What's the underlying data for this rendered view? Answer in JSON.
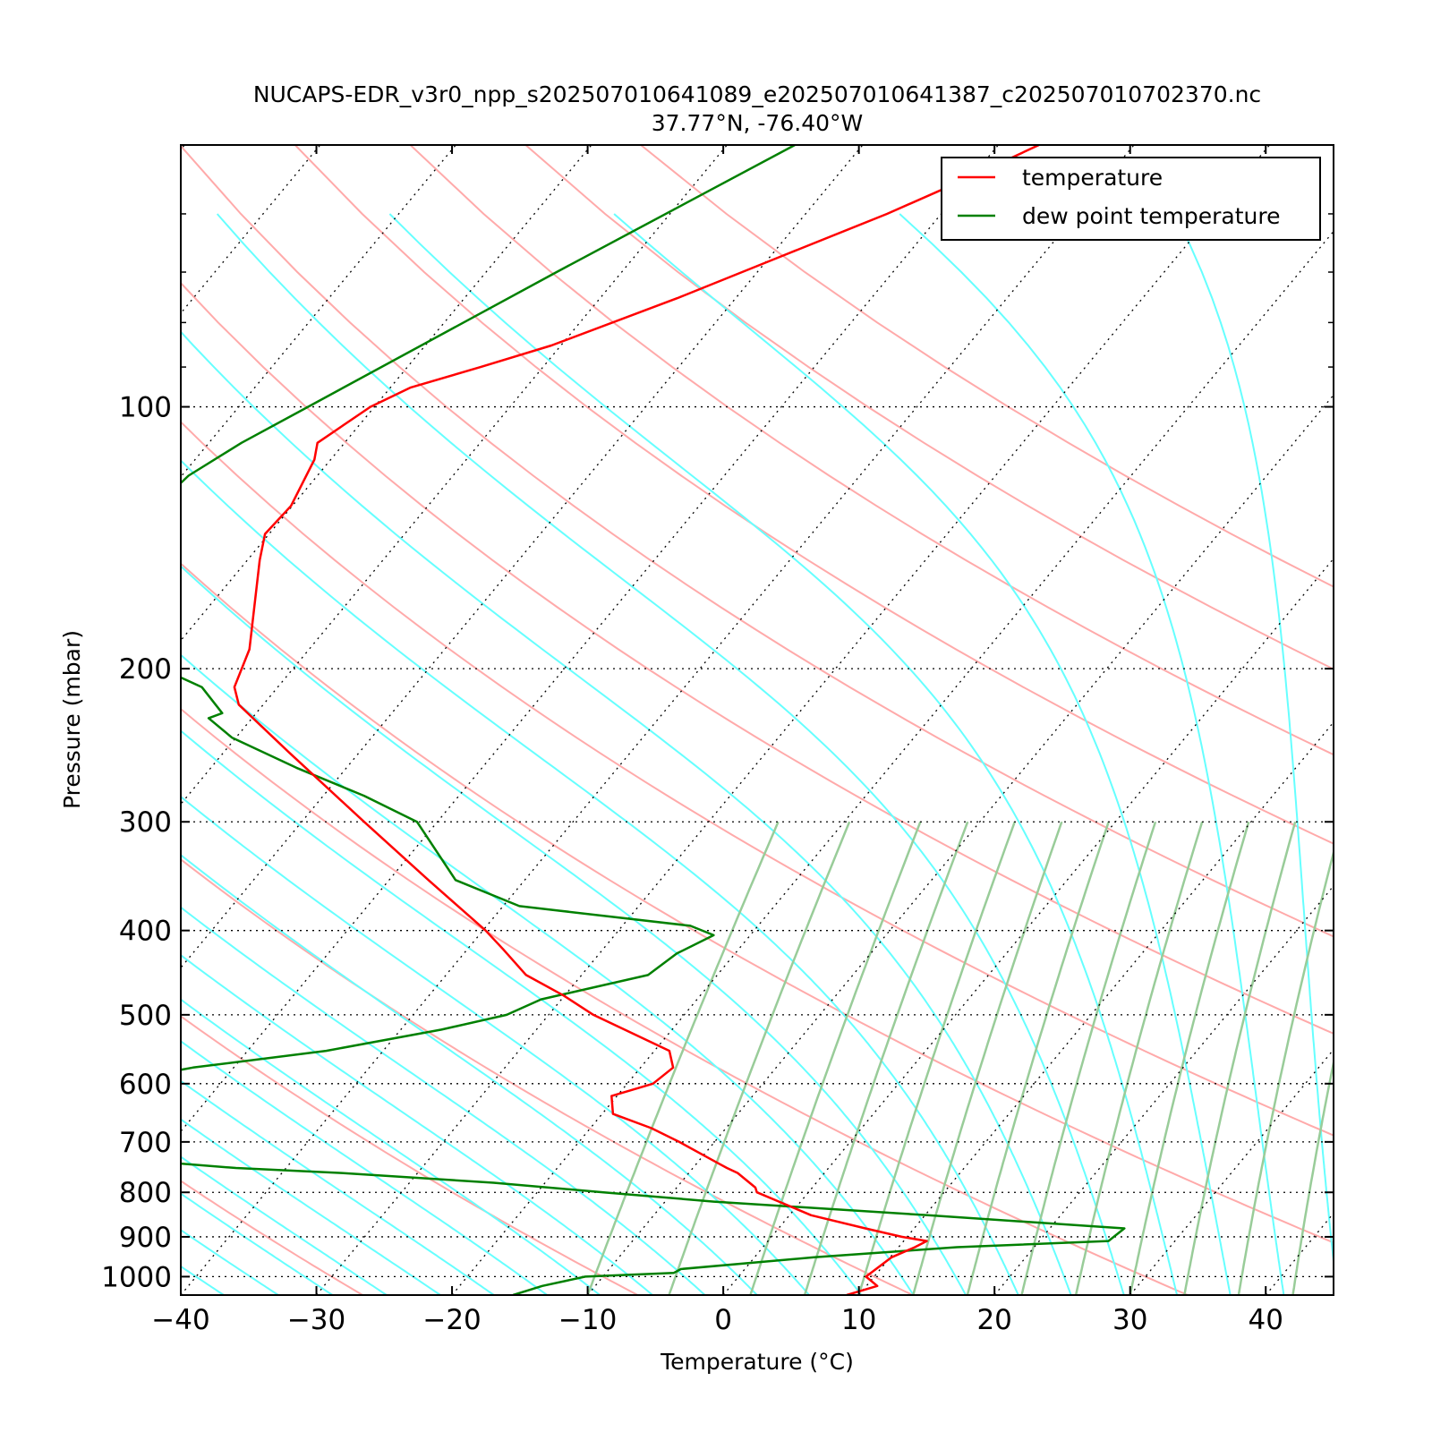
{
  "chart_data": {
    "type": "line",
    "title": "NUCAPS-EDR_v3r0_npp_s202507010641089_e202507010641387_c202507010702370.nc",
    "subtitle": "37.77°N, -76.40°W",
    "xlabel": "Temperature (°C)",
    "ylabel": "Pressure (mbar)",
    "xlim": [
      -40,
      45
    ],
    "ylim": [
      1050,
      50
    ],
    "y_scale": "log",
    "x_ticks": [
      -40,
      -30,
      -20,
      -10,
      0,
      10,
      20,
      30,
      40
    ],
    "x_tick_labels": [
      "−40",
      "−30",
      "−20",
      "−10",
      "0",
      "10",
      "20",
      "30",
      "40"
    ],
    "y_ticks": [
      1000,
      900,
      800,
      700,
      600,
      500,
      400,
      300,
      200,
      100
    ],
    "y_tick_labels": [
      "1000",
      "900",
      "800",
      "700",
      "600",
      "500",
      "400",
      "300",
      "200",
      "100"
    ],
    "isobar_grid": true,
    "isotherm_grid": true,
    "skew": true,
    "legend_location": "top-right",
    "colors": {
      "temperature": "#ff0000",
      "dewpoint": "#008000",
      "dry_adiabat": "#ffaaaa",
      "moist_adiabat": "#66ffff",
      "mixing_ratio": "#99cc99",
      "grid": "#000000"
    },
    "series": [
      {
        "name": "temperature",
        "pressure": [
          1050,
          1025,
          1000,
          950,
          925,
          910,
          900,
          880,
          850,
          820,
          800,
          790,
          760,
          750,
          740,
          700,
          675,
          650,
          620,
          600,
          575,
          550,
          500,
          475,
          450,
          420,
          400,
          350,
          300,
          250,
          220,
          210,
          190,
          150,
          140,
          130,
          115,
          110,
          100,
          95,
          90,
          85,
          75,
          67,
          60,
          55,
          50
        ],
        "temperature": [
          9.1,
          10.8,
          9.4,
          10.1,
          11.2,
          11.7,
          9.6,
          6.4,
          1.6,
          -1.6,
          -3.8,
          -4.2,
          -6.4,
          -7.5,
          -8.5,
          -12.6,
          -15.5,
          -19.2,
          -20.4,
          -18.1,
          -17.6,
          -18.9,
          -26.7,
          -30.1,
          -34.1,
          -37.4,
          -39.8,
          -47.1,
          -55.4,
          -65.1,
          -71.8,
          -73.2,
          -74.4,
          -79.1,
          -80.3,
          -80.1,
          -81.2,
          -82.0,
          -80.3,
          -78.5,
          -74.6,
          -70.7,
          -64.3,
          -59.1,
          -54.0,
          -50.5,
          -47.0
        ]
      },
      {
        "name": "dew point temperature",
        "pressure": [
          1050,
          1025,
          1000,
          990,
          980,
          950,
          925,
          910,
          880,
          850,
          820,
          800,
          780,
          760,
          750,
          740,
          720,
          700,
          690,
          670,
          650,
          640,
          620,
          600,
          575,
          550,
          520,
          500,
          480,
          450,
          425,
          405,
          395,
          375,
          350,
          300,
          280,
          260,
          240,
          228,
          225,
          210,
          200,
          180,
          170,
          160,
          150,
          140,
          130,
          120,
          110,
          100,
          70,
          50
        ],
        "dewpoint": [
          -15.5,
          -13.9,
          -11.3,
          -5.0,
          -4.7,
          4.4,
          14.3,
          25.1,
          25.5,
          10.2,
          -6.4,
          -15.1,
          -23.8,
          -35.6,
          -43.7,
          -48.8,
          -52.1,
          -57.2,
          -61.3,
          -63.7,
          -64.9,
          -64.3,
          -62.4,
          -58.4,
          -53.0,
          -44.2,
          -37.0,
          -33.1,
          -31.5,
          -25.1,
          -24.3,
          -22.7,
          -25.0,
          -38.8,
          -45.1,
          -51.5,
          -57.0,
          -63.7,
          -70.3,
          -73.2,
          -72.5,
          -75.6,
          -79.7,
          -86.1,
          -87.2,
          -88.8,
          -90.0,
          -90.3,
          -90.0,
          -89.5,
          -87.6,
          -84.9,
          -74.8,
          -65.0
        ]
      }
    ]
  }
}
